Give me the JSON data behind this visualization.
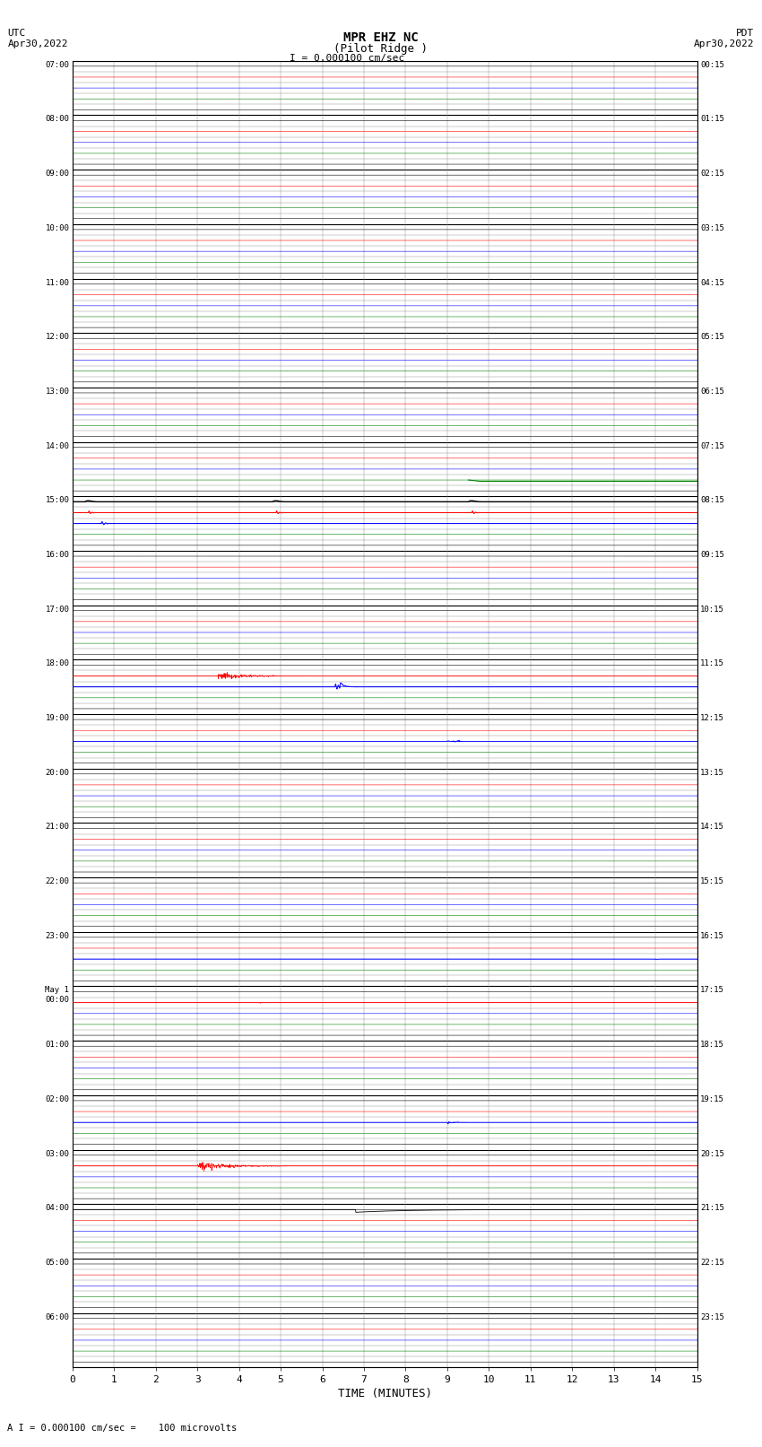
{
  "title_line1": "MPR EHZ NC",
  "title_line2": "(Pilot Ridge )",
  "title_line3": "I = 0.000100 cm/sec",
  "left_label_top": "UTC",
  "left_label_date": "Apr30,2022",
  "right_label_top": "PDT",
  "right_label_date": "Apr30,2022",
  "bottom_label": "TIME (MINUTES)",
  "footer_text": "A I = 0.000100 cm/sec =    100 microvolts",
  "n_rows": 24,
  "xlim": [
    0,
    15
  ],
  "xticks": [
    0,
    1,
    2,
    3,
    4,
    5,
    6,
    7,
    8,
    9,
    10,
    11,
    12,
    13,
    14,
    15
  ],
  "utc_labels": [
    "07:00",
    "08:00",
    "09:00",
    "10:00",
    "11:00",
    "12:00",
    "13:00",
    "14:00",
    "15:00",
    "16:00",
    "17:00",
    "18:00",
    "19:00",
    "20:00",
    "21:00",
    "22:00",
    "23:00",
    "May 1\n00:00",
    "01:00",
    "02:00",
    "03:00",
    "04:00",
    "05:00",
    "06:00"
  ],
  "pdt_labels": [
    "00:15",
    "01:15",
    "02:15",
    "03:15",
    "04:15",
    "05:15",
    "06:15",
    "07:15",
    "08:15",
    "09:15",
    "10:15",
    "11:15",
    "12:15",
    "13:15",
    "14:15",
    "15:15",
    "16:15",
    "17:15",
    "18:15",
    "19:15",
    "20:15",
    "21:15",
    "22:15",
    "23:15"
  ],
  "n_subrows": 5,
  "subrow_colors": [
    "black",
    "red",
    "blue",
    "green",
    "black"
  ],
  "noise_scale": 0.003,
  "bg_color": "#ffffff"
}
